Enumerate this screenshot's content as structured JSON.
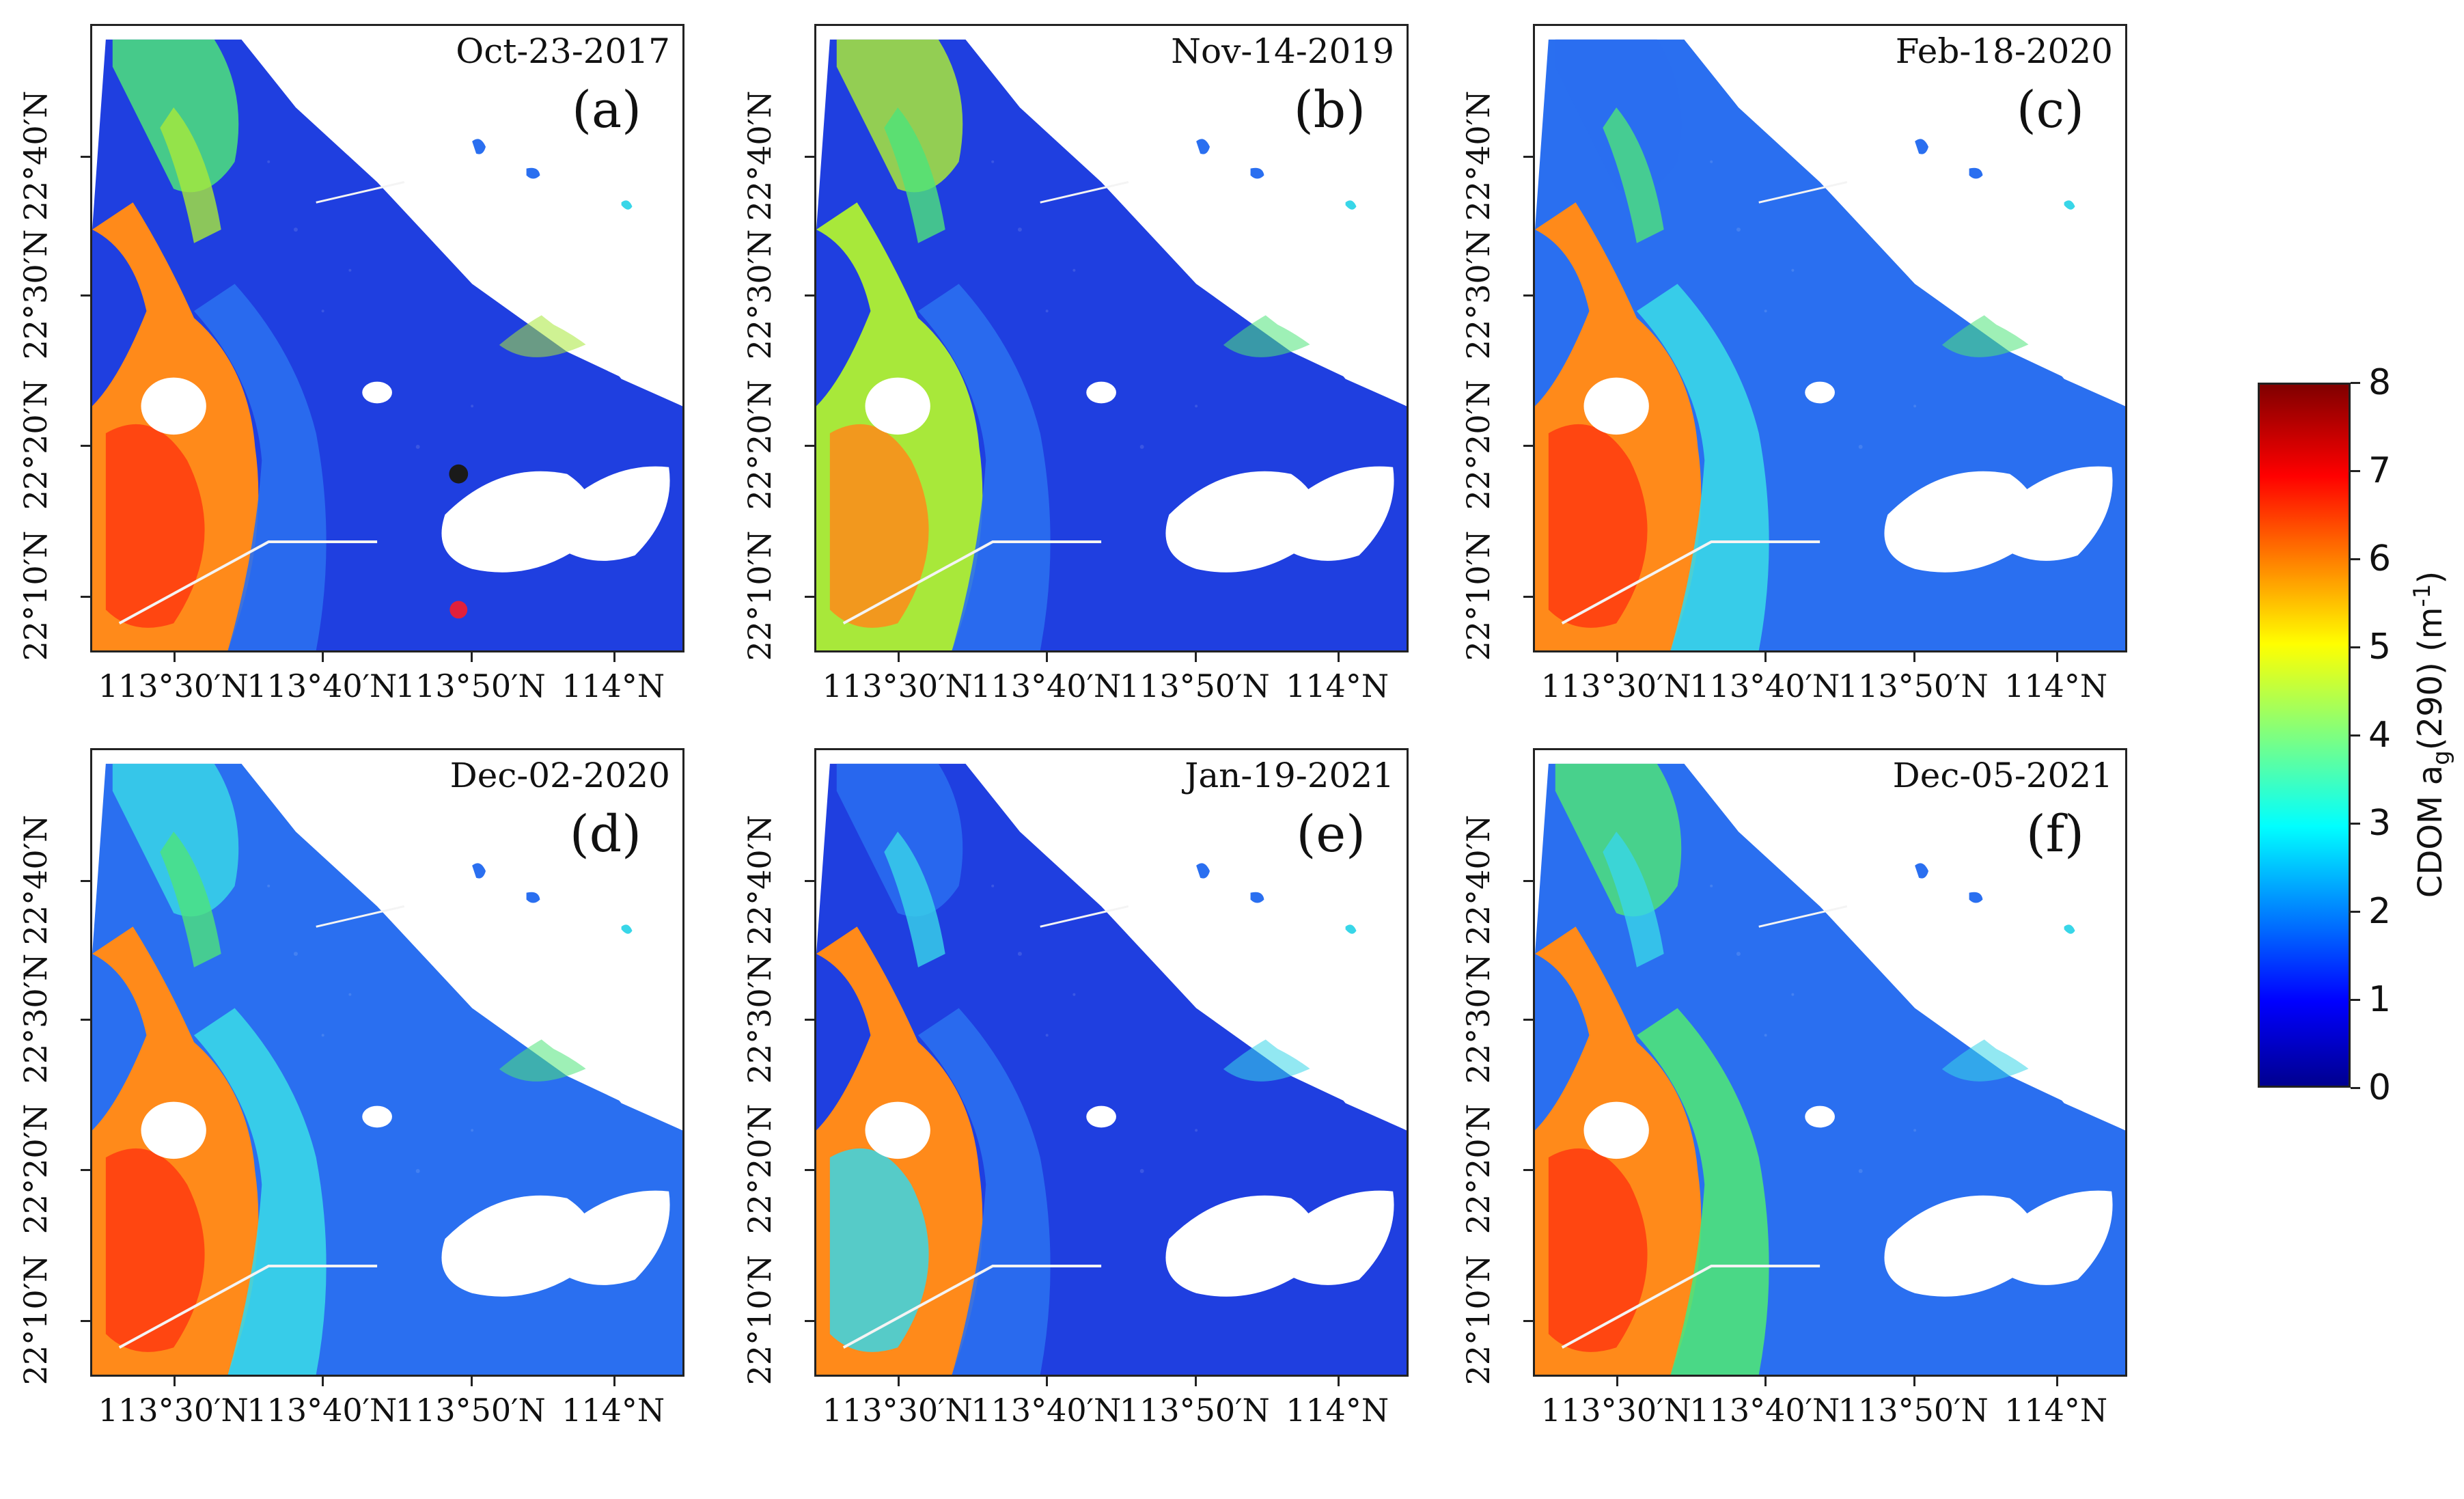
{
  "figure": {
    "panels": [
      {
        "id": "a",
        "letter": "(a)",
        "date": "Oct-23-2017",
        "style": "blue"
      },
      {
        "id": "b",
        "letter": "(b)",
        "date": "Nov-14-2019",
        "style": "green"
      },
      {
        "id": "c",
        "letter": "(c)",
        "date": "Feb-18-2020",
        "style": "cyan"
      },
      {
        "id": "d",
        "letter": "(d)",
        "date": "Dec-02-2020",
        "style": "orange"
      },
      {
        "id": "e",
        "letter": "(e)",
        "date": "Jan-19-2021",
        "style": "deepblue"
      },
      {
        "id": "f",
        "letter": "(f)",
        "date": "Dec-05-2021",
        "style": "mixed"
      }
    ],
    "y_ticks": [
      "22°40′N",
      "22°30′N",
      "22°20′N",
      "22°10′N"
    ],
    "x_ticks": [
      "113°30′N",
      "113°40′N",
      "113°50′N",
      "114°N"
    ],
    "colorbar": {
      "title": "CDOM a",
      "title_sub": "g",
      "title_suffix": "(290)  (m",
      "title_sup": "-1",
      "title_end": ")",
      "ticks": [
        "8",
        "7",
        "6",
        "5",
        "4",
        "3",
        "2",
        "1",
        "0"
      ],
      "min": 0,
      "max": 8
    },
    "colors": {
      "land": "#ffffff",
      "deep_blue": "#1f3fe0",
      "mid_blue": "#2a6ff0",
      "cyan": "#38d6e8",
      "green": "#4ee37a",
      "yellow_green": "#a8e83a",
      "orange": "#ff8a1a",
      "red": "#ff3a10",
      "dark_red": "#9a0a0a"
    }
  }
}
